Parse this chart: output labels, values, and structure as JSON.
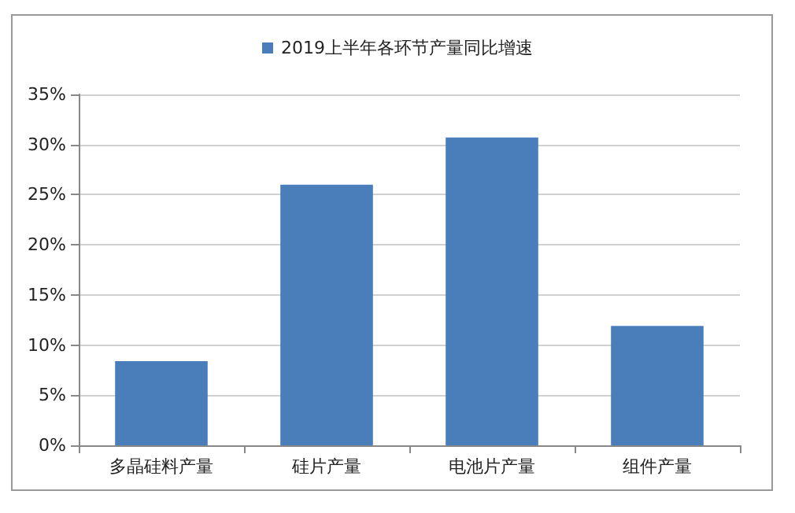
{
  "chart_data": {
    "type": "bar",
    "categories": [
      "多晶硅料产量",
      "硅片产量",
      "电池片产量",
      "组件产量"
    ],
    "series": [
      {
        "name": "2019上半年各环节产量同比增速",
        "color": "#4a7ebb",
        "values": [
          8.4,
          26.0,
          30.7,
          11.9
        ]
      }
    ],
    "ylim": [
      0,
      35
    ],
    "yticks": [
      {
        "value": 0,
        "label": "0%"
      },
      {
        "value": 5,
        "label": "5%"
      },
      {
        "value": 10,
        "label": "10%"
      },
      {
        "value": 15,
        "label": "15%"
      },
      {
        "value": 20,
        "label": "20%"
      },
      {
        "value": 25,
        "label": "25%"
      },
      {
        "value": 30,
        "label": "30%"
      },
      {
        "value": 35,
        "label": "35%"
      }
    ],
    "grid": "y",
    "legend": "top"
  }
}
